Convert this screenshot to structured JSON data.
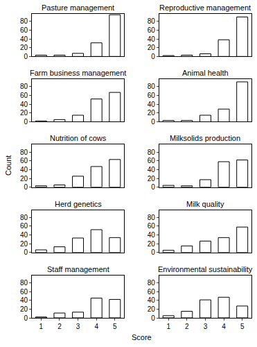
{
  "chart_data": {
    "type": "bar",
    "x_label": "Score",
    "y_label": "Count",
    "x": [
      1,
      2,
      3,
      4,
      5
    ],
    "xlim": [
      0.5,
      5.5
    ],
    "xticks": [
      1,
      2,
      3,
      4,
      5
    ],
    "ylim": [
      0,
      97
    ],
    "yticks": [
      0,
      20,
      40,
      60,
      80
    ],
    "grid": false,
    "color": "#ffffff",
    "panels": [
      {
        "title": "Pasture management",
        "values": [
          3,
          3,
          7,
          31,
          95
        ]
      },
      {
        "title": "Reproductive management",
        "values": [
          2,
          3,
          6,
          38,
          90
        ]
      },
      {
        "title": "Farm business management",
        "values": [
          2,
          5,
          15,
          52,
          67
        ]
      },
      {
        "title": "Animal health",
        "values": [
          3,
          3,
          15,
          29,
          91
        ]
      },
      {
        "title": "Nutrition of cows",
        "values": [
          3,
          5,
          25,
          47,
          63
        ]
      },
      {
        "title": "Milksolids production",
        "values": [
          4,
          3,
          17,
          58,
          62
        ]
      },
      {
        "title": "Herd genetics",
        "values": [
          6,
          13,
          33,
          52,
          34
        ]
      },
      {
        "title": "Milk quality",
        "values": [
          5,
          15,
          26,
          34,
          58
        ]
      },
      {
        "title": "Staff management",
        "values": [
          2,
          11,
          13,
          45,
          42
        ]
      },
      {
        "title": "Environmental sustainability",
        "values": [
          5,
          15,
          41,
          47,
          27
        ]
      }
    ]
  }
}
